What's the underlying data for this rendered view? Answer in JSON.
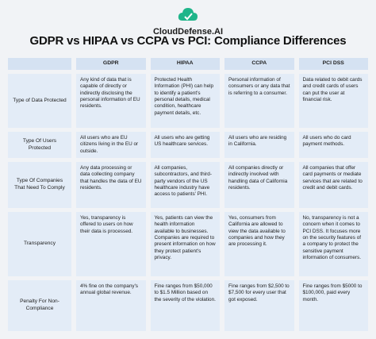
{
  "logo": {
    "text": "CloudDefense.AI"
  },
  "title": "GDPR vs HIPAA vs CCPA vs PCI: Compliance Differences",
  "table": {
    "header": [
      "GDPR",
      "HIPAA",
      "CCPA",
      "PCI DSS"
    ],
    "rows": [
      {
        "label": "Type of Data Protected",
        "cells": [
          "Any kind of data that is capable of directly or indirectly disclosing the personal information of EU residents.",
          "Protected Health Information (PHI) can help to identify a patient's personal details, medical condition, healthcare payment details, etc.",
          "Personal information of consumers or any data that is referring to a consumer.",
          "Data related to debit cards and credit cards of users can put the user at financial risk."
        ]
      },
      {
        "label": "Type Of Users Protected",
        "cells": [
          "All users who are EU citizens living in the EU or outside.",
          "All users who are getting US healthcare services.",
          "All users who are residing in California.",
          "All users who do card payment methods."
        ]
      },
      {
        "label": "Type Of Companies That Need To Comply",
        "cells": [
          "Any data processing or data collecting company that handles the data of EU residents.",
          "All companies, subcontractors, and third-party vendors of the US healthcare industry have access to patients' PHI.",
          "All companies directly or indirectly involved with handling data of California residents.",
          "All companies that offer card payments or mediate services that are related to credit and debit cards."
        ]
      },
      {
        "label": "Transparency",
        "cells": [
          "Yes, transparency is offered to users on how their data is processed.",
          "Yes, patients can view the health information available to businesses. Companies are required to present information on how they protect patient's privacy.",
          "Yes, consumers from California are allowed to view the data available to companies and how they are processing it.",
          "No, transparency is not a concern when it comes to PCI DSS. It focuses more on the security features of a company to protect the sensitive payment information of consumers."
        ]
      },
      {
        "label": "Penalty For Non-Compliance",
        "cells": [
          "4% fine on the company's annual global revenue.",
          "Fine ranges from $50,000 to $1.5 Million based on the severity of the violation.",
          "Fine ranges from $2,500 to $7,500 for every user that got exposed.",
          "Fine ranges from $5000 to $100,000, paid every month."
        ]
      }
    ]
  }
}
